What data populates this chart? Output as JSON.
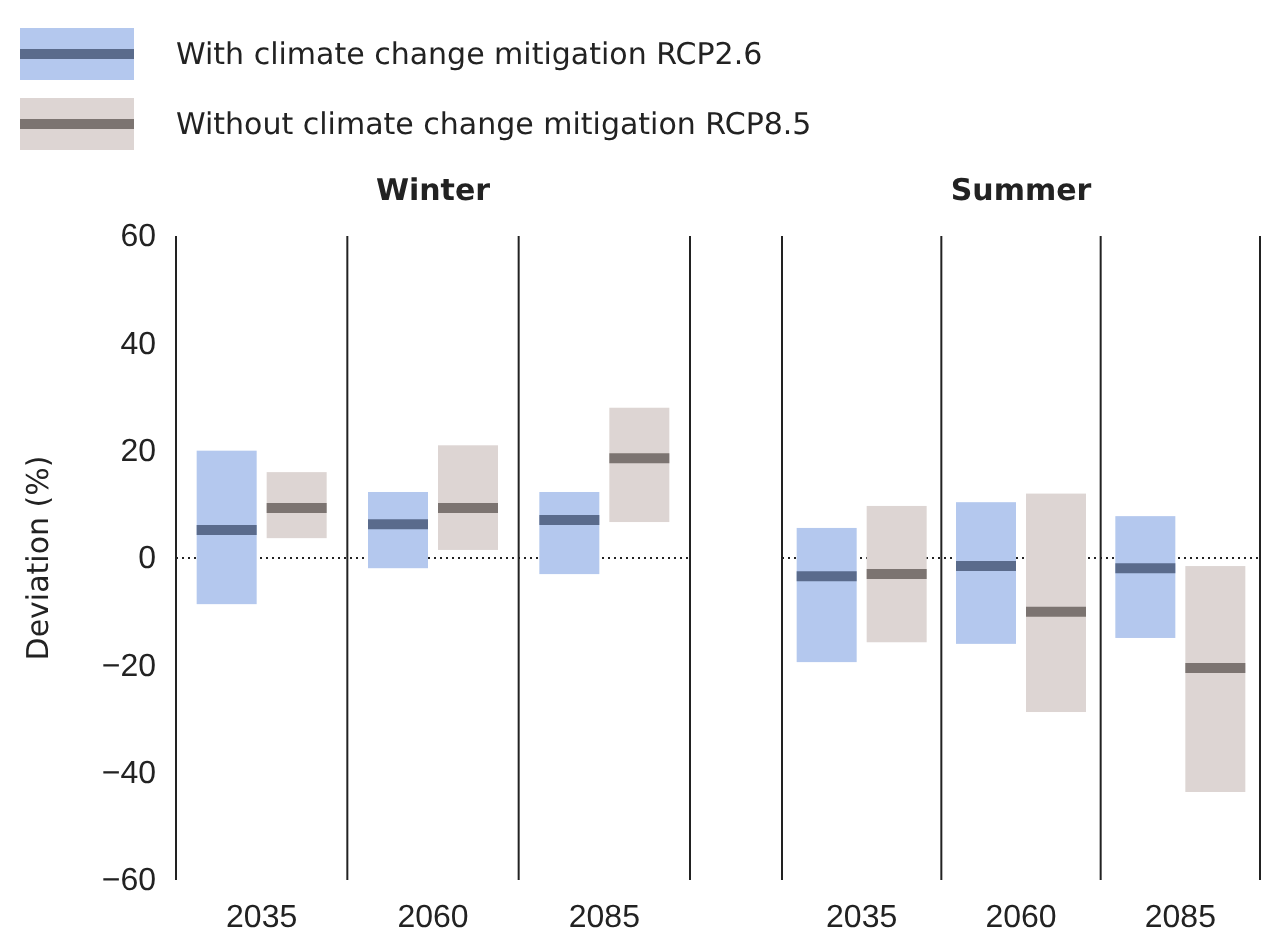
{
  "chart_data": [
    {
      "type": "box",
      "title": "Winter",
      "ylabel": "Deviation (%)",
      "categories": [
        "2035",
        "2060",
        "2085"
      ],
      "ylim": [
        -60,
        60
      ],
      "yticks": [
        -60,
        -40,
        -20,
        0,
        20,
        40,
        60
      ],
      "legend": "top left",
      "ref_lines": [
        {
          "axis": "y",
          "value": 0,
          "line_style": "dotted"
        }
      ],
      "series": [
        {
          "name": "With climate change mitigation RCP2.6",
          "color": "#b4c8ee",
          "boxes": [
            {
              "low": -8.6,
              "q1": -8.6,
              "median": 5.2,
              "q3": 20,
              "high": 20
            },
            {
              "low": -1.9,
              "q1": -1.9,
              "median": 6.3,
              "q3": 12.3,
              "high": 12.3
            },
            {
              "low": -3,
              "q1": -3,
              "median": 7.1,
              "q3": 12.3,
              "high": 12.3
            }
          ]
        },
        {
          "name": "Without climate change mitigation RCP8.5",
          "color": "#ddd5d3",
          "boxes": [
            {
              "low": 3.7,
              "q1": 3.7,
              "median": 9.3,
              "q3": 16,
              "high": 16
            },
            {
              "low": 1.5,
              "q1": 1.5,
              "median": 9.3,
              "q3": 21,
              "high": 21
            },
            {
              "low": 6.7,
              "q1": 6.7,
              "median": 18.6,
              "q3": 28,
              "high": 28
            }
          ]
        }
      ]
    },
    {
      "type": "box",
      "title": "Summer",
      "categories": [
        "2035",
        "2060",
        "2085"
      ],
      "ylim": [
        -60,
        60
      ],
      "yticks": [
        -60,
        -40,
        -20,
        0,
        20,
        40,
        60
      ],
      "tick_labels": "x",
      "ref_lines": [
        {
          "axis": "y",
          "value": 0,
          "line_style": "dotted"
        }
      ],
      "series": [
        {
          "color": "#b4c8ee",
          "boxes": [
            {
              "low": -19.4,
              "q1": -19.4,
              "median": -3.4,
              "q3": 5.6,
              "high": 5.6
            },
            {
              "low": -16,
              "q1": -16,
              "median": -1.5,
              "q3": 10.4,
              "high": 10.4
            },
            {
              "low": -14.9,
              "q1": -14.9,
              "median": -1.9,
              "q3": 7.8,
              "high": 7.8
            }
          ]
        },
        {
          "color": "#ddd5d3",
          "boxes": [
            {
              "low": -15.7,
              "q1": -15.7,
              "median": -3,
              "q3": 9.7,
              "high": 9.7
            },
            {
              "low": -28.7,
              "q1": -28.7,
              "median": -10,
              "q3": 12,
              "high": 12
            },
            {
              "low": -43.6,
              "q1": -43.6,
              "median": -20.5,
              "q3": -1.5,
              "high": -1.5
            }
          ]
        }
      ]
    }
  ]
}
